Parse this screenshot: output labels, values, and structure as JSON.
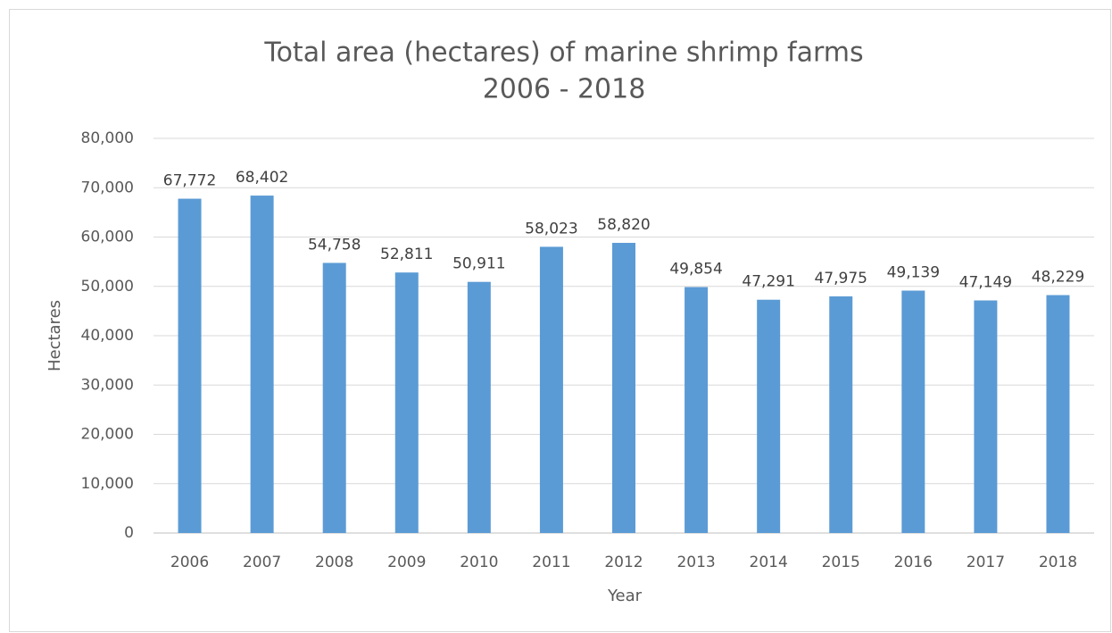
{
  "chart_data": {
    "type": "bar",
    "title": "Total area (hectares) of marine shrimp farms",
    "subtitle": "2006 - 2018",
    "x_label": "Year",
    "y_label": "Hectares",
    "categories": [
      "2006",
      "2007",
      "2008",
      "2009",
      "2010",
      "2011",
      "2012",
      "2013",
      "2014",
      "2015",
      "2016",
      "2017",
      "2018"
    ],
    "values": [
      67772,
      68402,
      54758,
      52811,
      50911,
      58023,
      58820,
      49854,
      47291,
      47975,
      49139,
      47149,
      48229
    ],
    "value_labels": [
      "67,772",
      "68,402",
      "54,758",
      "52,811",
      "50,911",
      "58,023",
      "58,820",
      "49,854",
      "47,291",
      "47,975",
      "49,139",
      "47,149",
      "48,229"
    ],
    "color": "#5b9bd5",
    "ylim": [
      0,
      80000
    ],
    "yticks": [
      0,
      {
        "value": 10000,
        "label": "10,000"
      },
      {
        "value": 20000,
        "label": "20,000"
      },
      {
        "value": 30000,
        "label": "30,000"
      },
      {
        "value": 40000,
        "label": "40,000"
      },
      {
        "value": 50000,
        "label": "50,000"
      },
      {
        "value": 60000,
        "label": "60,000"
      },
      {
        "value": 70000,
        "label": "70,000"
      },
      {
        "value": 80000,
        "label": "80,000"
      }
    ],
    "grid": true
  }
}
